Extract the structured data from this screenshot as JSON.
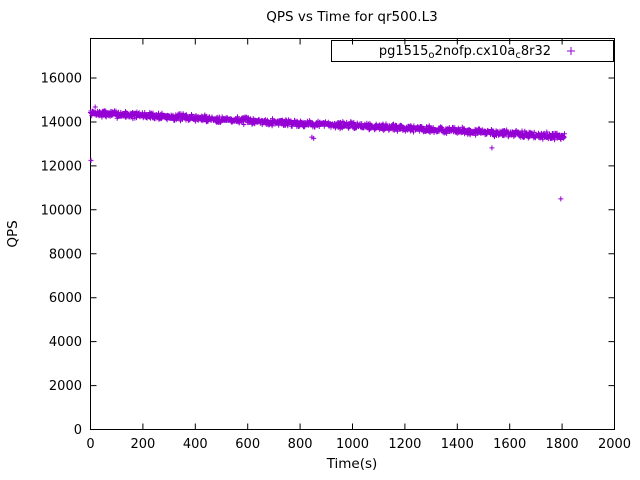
{
  "window": {
    "title": "QPS vs Time for qr500.L3"
  },
  "chart_data": {
    "type": "scatter",
    "title": "QPS vs Time for qr500.L3",
    "xlabel": "Time(s)",
    "ylabel": "QPS",
    "xlim": [
      0,
      2000
    ],
    "ylim": [
      0,
      17800
    ],
    "xticks": [
      0,
      200,
      400,
      600,
      800,
      1000,
      1200,
      1400,
      1600,
      1800,
      2000
    ],
    "yticks": [
      0,
      2000,
      4000,
      6000,
      8000,
      10000,
      12000,
      14000,
      16000
    ],
    "grid": false,
    "legend": {
      "position": "top-right",
      "part1": "pg1515",
      "sub1": "o",
      "part2": "2nofp.cx10a",
      "sub2": "c",
      "part3": "8r32",
      "marker": "plus"
    },
    "series_color": "#9400D3",
    "band": {
      "seed": 7,
      "t_start": 0,
      "t_end": 1810,
      "step": 1.5,
      "noise": 190
    },
    "trend_points": [
      [
        0,
        14400
      ],
      [
        200,
        14300
      ],
      [
        400,
        14180
      ],
      [
        600,
        14060
      ],
      [
        800,
        13940
      ],
      [
        1000,
        13840
      ],
      [
        1200,
        13730
      ],
      [
        1400,
        13600
      ],
      [
        1600,
        13470
      ],
      [
        1810,
        13330
      ]
    ],
    "outliers": [
      [
        2,
        12250
      ],
      [
        18,
        14680
      ],
      [
        845,
        13310
      ],
      [
        852,
        13250
      ],
      [
        1532,
        12820
      ],
      [
        1795,
        10500
      ]
    ]
  }
}
